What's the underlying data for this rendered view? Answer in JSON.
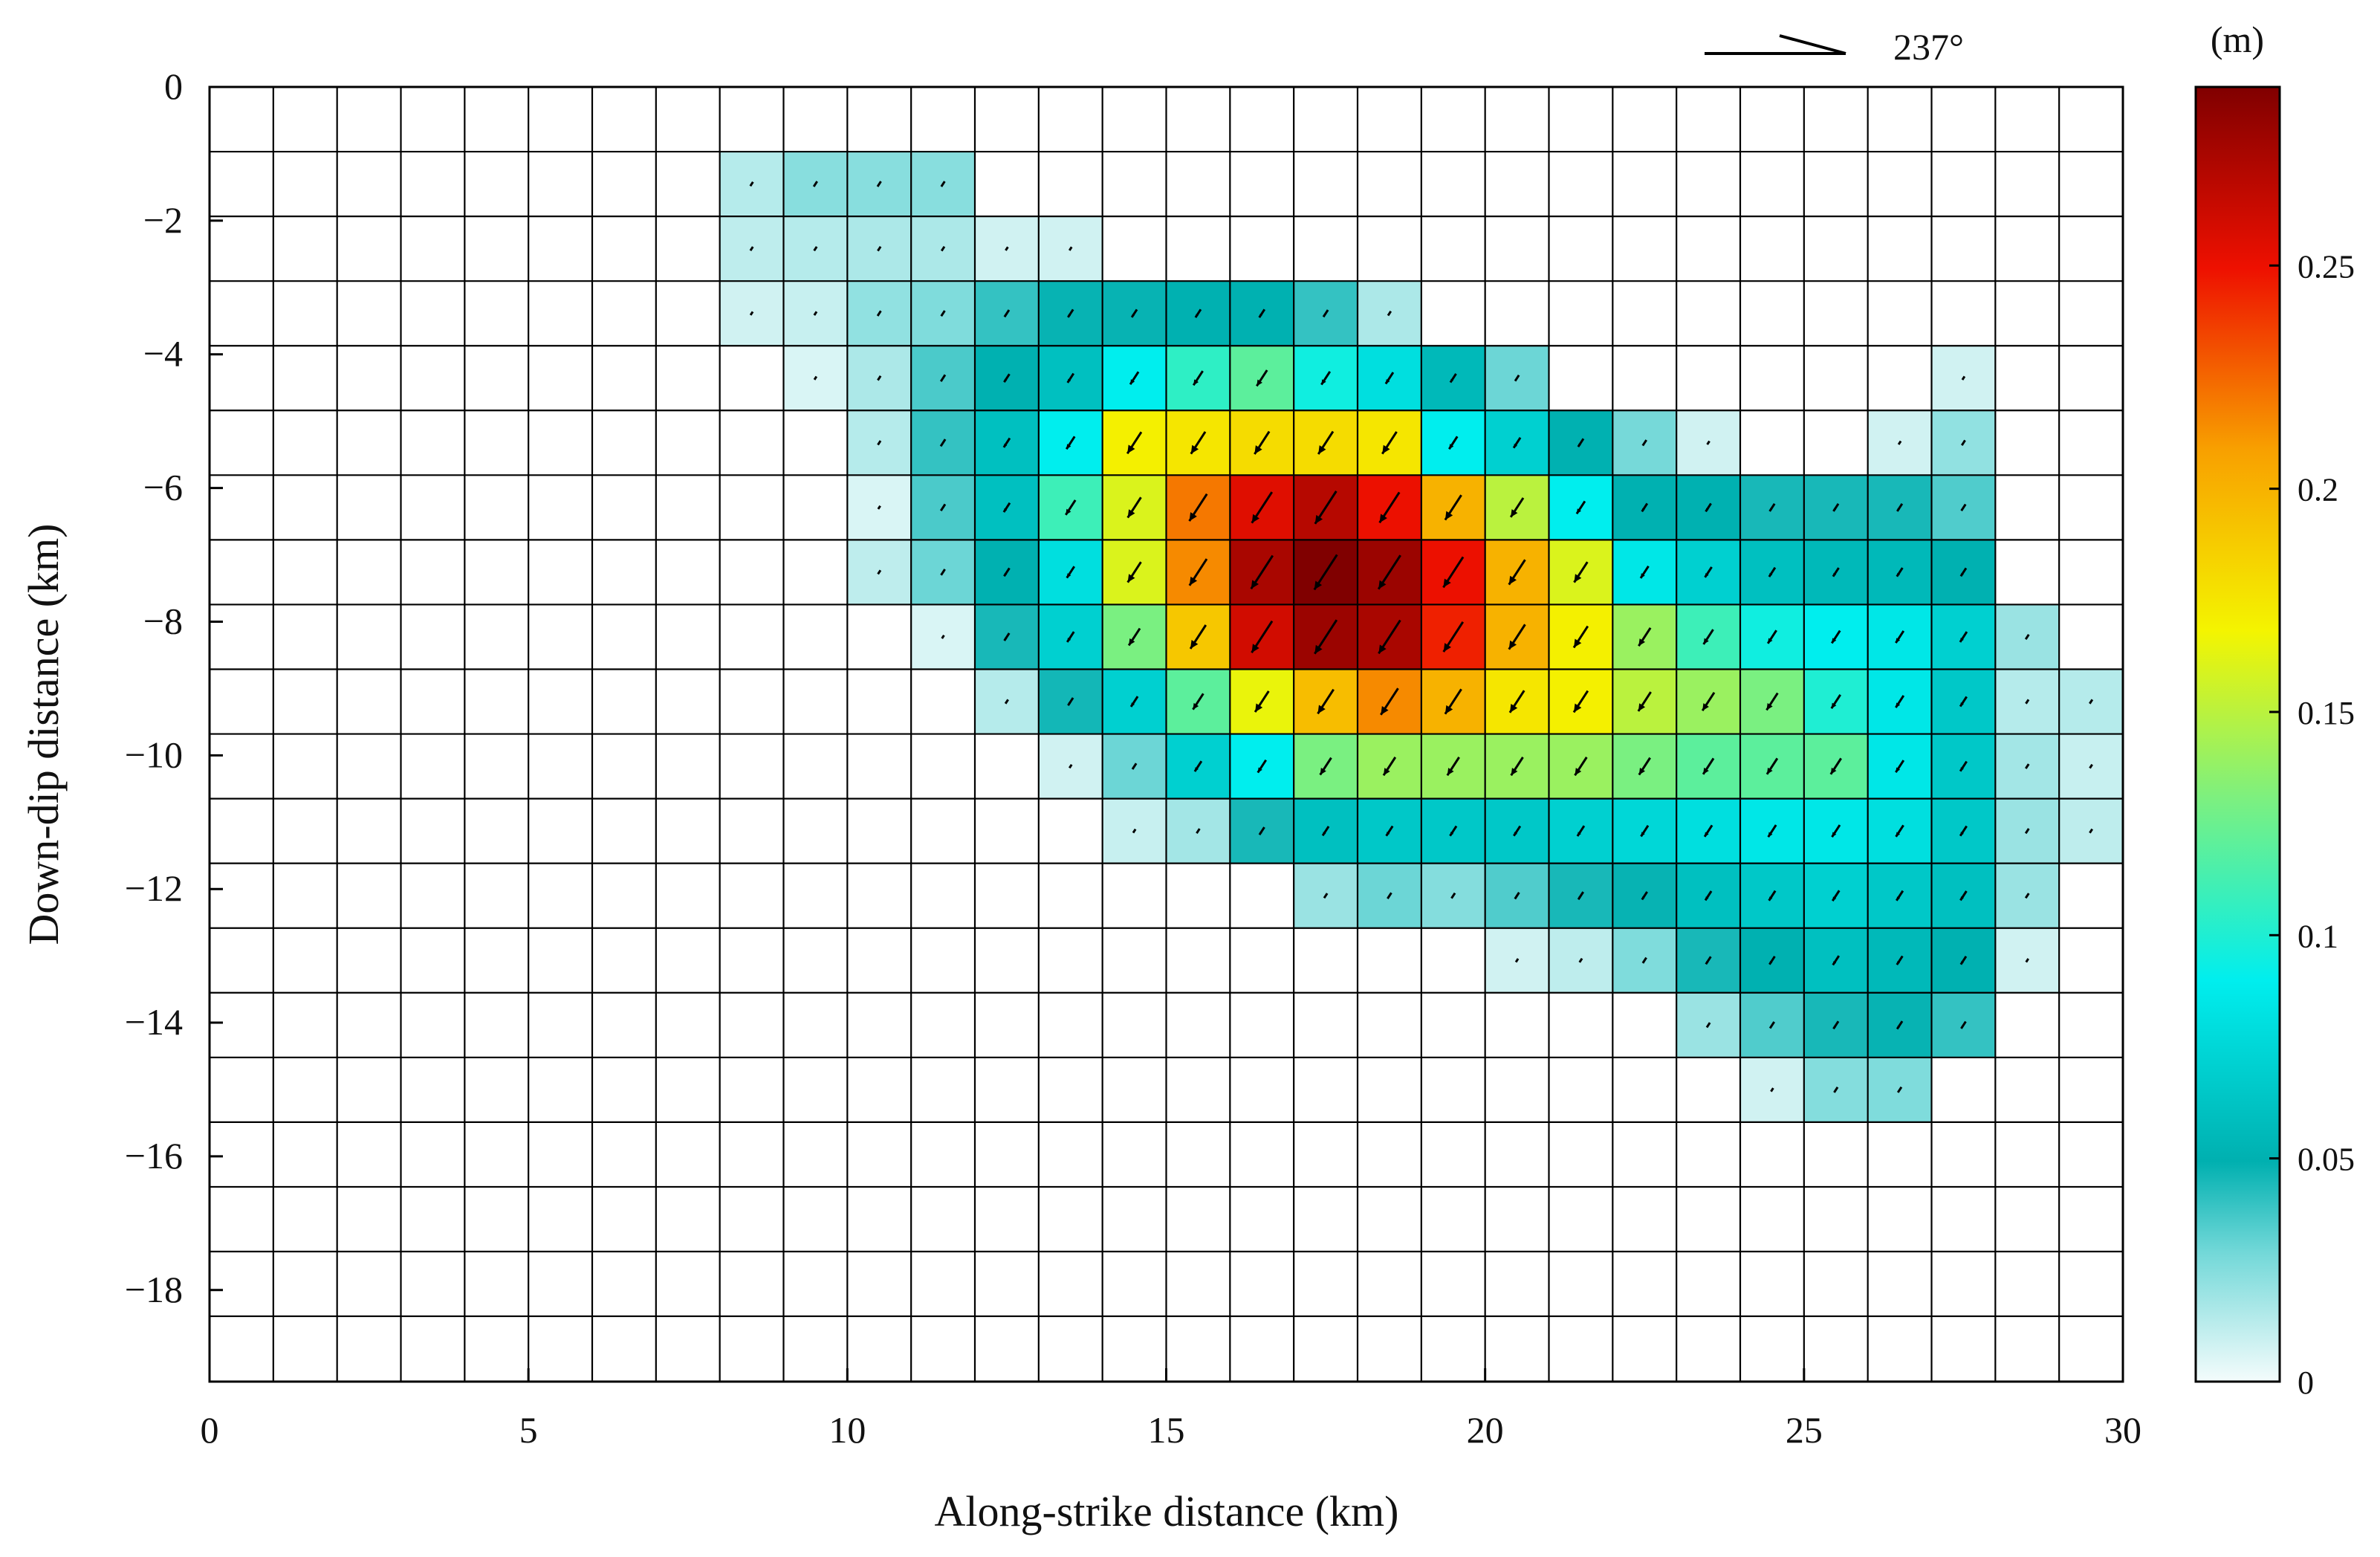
{
  "chart_data": {
    "type": "heatmap",
    "title": "",
    "xlabel": "Along-strike distance (km)",
    "ylabel": "Down-dip distance (km)",
    "xlim": [
      0,
      30
    ],
    "ylim": [
      -19.37,
      0
    ],
    "x_ticks": [
      0,
      5,
      10,
      15,
      20,
      25,
      30
    ],
    "y_ticks": [
      0,
      -2,
      -4,
      -6,
      -8,
      -10,
      -12,
      -14,
      -16,
      -18
    ],
    "grid": "1 km along-strike x 0.968 km down-dip patches; 30 columns x 20 rows",
    "cell_size_km": [
      1.0,
      0.968
    ],
    "colorbar": {
      "unit_label": "(m)",
      "range": [
        0,
        0.29
      ],
      "ticks": [
        0,
        0.05,
        0.1,
        0.15,
        0.2,
        0.25
      ],
      "tick_labels": [
        "0",
        "0.05",
        "0.1",
        "0.15",
        "0.2",
        "0.25"
      ],
      "colormap": "jet (white-to-cyan at low end)"
    },
    "rake_reference": {
      "label": "237°",
      "angle_deg": 237
    },
    "slip_rows": [
      [
        0,
        0,
        0,
        0,
        0,
        0,
        0,
        0,
        0,
        0,
        0,
        0,
        0,
        0,
        0,
        0,
        0,
        0,
        0,
        0,
        0,
        0,
        0,
        0,
        0,
        0,
        0,
        0,
        0,
        0
      ],
      [
        0,
        0,
        0,
        0,
        0,
        0,
        0,
        0,
        0.014,
        0.024,
        0.024,
        0.024,
        0,
        0,
        0,
        0,
        0,
        0,
        0,
        0,
        0,
        0,
        0,
        0,
        0,
        0,
        0,
        0,
        0,
        0
      ],
      [
        0,
        0,
        0,
        0,
        0,
        0,
        0,
        0,
        0.012,
        0.014,
        0.016,
        0.016,
        0.008,
        0.008,
        0,
        0,
        0,
        0,
        0,
        0,
        0,
        0,
        0,
        0,
        0,
        0,
        0,
        0,
        0,
        0
      ],
      [
        0,
        0,
        0,
        0,
        0,
        0,
        0,
        0,
        0.008,
        0.01,
        0.022,
        0.026,
        0.04,
        0.048,
        0.048,
        0.05,
        0.05,
        0.04,
        0.016,
        0,
        0,
        0,
        0,
        0,
        0,
        0,
        0,
        0,
        0,
        0
      ],
      [
        0,
        0,
        0,
        0,
        0,
        0,
        0,
        0,
        0,
        0.006,
        0.016,
        0.036,
        0.05,
        0.06,
        0.09,
        0.105,
        0.12,
        0.095,
        0.08,
        0.055,
        0.03,
        0,
        0,
        0,
        0,
        0,
        0,
        0.008,
        0,
        0
      ],
      [
        0,
        0,
        0,
        0,
        0,
        0,
        0,
        0,
        0,
        0,
        0.014,
        0.04,
        0.06,
        0.09,
        0.17,
        0.175,
        0.18,
        0.18,
        0.175,
        0.09,
        0.07,
        0.05,
        0.028,
        0.008,
        0,
        0,
        0.008,
        0.022,
        0,
        0
      ],
      [
        0,
        0,
        0,
        0,
        0,
        0,
        0,
        0,
        0,
        0,
        0.006,
        0.036,
        0.06,
        0.11,
        0.16,
        0.22,
        0.255,
        0.27,
        0.25,
        0.2,
        0.15,
        0.09,
        0.05,
        0.05,
        0.045,
        0.045,
        0.045,
        0.035,
        0,
        0
      ],
      [
        0,
        0,
        0,
        0,
        0,
        0,
        0,
        0,
        0,
        0,
        0.012,
        0.03,
        0.05,
        0.08,
        0.16,
        0.215,
        0.275,
        0.29,
        0.28,
        0.25,
        0.2,
        0.16,
        0.085,
        0.07,
        0.06,
        0.055,
        0.055,
        0.05,
        0,
        0
      ],
      [
        0,
        0,
        0,
        0,
        0,
        0,
        0,
        0,
        0,
        0,
        0,
        0.006,
        0.045,
        0.07,
        0.13,
        0.19,
        0.26,
        0.28,
        0.275,
        0.245,
        0.2,
        0.17,
        0.14,
        0.11,
        0.095,
        0.09,
        0.085,
        0.07,
        0.02,
        0
      ],
      [
        0,
        0,
        0,
        0,
        0,
        0,
        0,
        0,
        0,
        0,
        0,
        0,
        0.014,
        0.046,
        0.07,
        0.12,
        0.165,
        0.195,
        0.215,
        0.2,
        0.175,
        0.17,
        0.15,
        0.14,
        0.13,
        0.1,
        0.085,
        0.065,
        0.014,
        0.014
      ],
      [
        0,
        0,
        0,
        0,
        0,
        0,
        0,
        0,
        0,
        0,
        0,
        0,
        0,
        0.008,
        0.03,
        0.07,
        0.09,
        0.13,
        0.14,
        0.14,
        0.14,
        0.14,
        0.13,
        0.12,
        0.12,
        0.12,
        0.085,
        0.065,
        0.018,
        0.01
      ],
      [
        0,
        0,
        0,
        0,
        0,
        0,
        0,
        0,
        0,
        0,
        0,
        0,
        0,
        0,
        0.01,
        0.018,
        0.045,
        0.06,
        0.065,
        0.065,
        0.065,
        0.07,
        0.075,
        0.08,
        0.085,
        0.085,
        0.08,
        0.065,
        0.02,
        0.012
      ],
      [
        0,
        0,
        0,
        0,
        0,
        0,
        0,
        0,
        0,
        0,
        0,
        0,
        0,
        0,
        0,
        0,
        0,
        0.02,
        0.03,
        0.025,
        0.035,
        0.045,
        0.048,
        0.06,
        0.065,
        0.07,
        0.065,
        0.06,
        0.02,
        0
      ],
      [
        0,
        0,
        0,
        0,
        0,
        0,
        0,
        0,
        0,
        0,
        0,
        0,
        0,
        0,
        0,
        0,
        0,
        0,
        0,
        0,
        0.008,
        0.012,
        0.026,
        0.045,
        0.05,
        0.06,
        0.055,
        0.05,
        0.008,
        0
      ],
      [
        0,
        0,
        0,
        0,
        0,
        0,
        0,
        0,
        0,
        0,
        0,
        0,
        0,
        0,
        0,
        0,
        0,
        0,
        0,
        0,
        0,
        0,
        0,
        0.02,
        0.035,
        0.045,
        0.048,
        0.04,
        0,
        0
      ],
      [
        0,
        0,
        0,
        0,
        0,
        0,
        0,
        0,
        0,
        0,
        0,
        0,
        0,
        0,
        0,
        0,
        0,
        0,
        0,
        0,
        0,
        0,
        0,
        0,
        0.008,
        0.025,
        0.026,
        0,
        0,
        0
      ],
      [
        0,
        0,
        0,
        0,
        0,
        0,
        0,
        0,
        0,
        0,
        0,
        0,
        0,
        0,
        0,
        0,
        0,
        0,
        0,
        0,
        0,
        0,
        0,
        0,
        0,
        0,
        0,
        0,
        0,
        0
      ],
      [
        0,
        0,
        0,
        0,
        0,
        0,
        0,
        0,
        0,
        0,
        0,
        0,
        0,
        0,
        0,
        0,
        0,
        0,
        0,
        0,
        0,
        0,
        0,
        0,
        0,
        0,
        0,
        0,
        0,
        0
      ],
      [
        0,
        0,
        0,
        0,
        0,
        0,
        0,
        0,
        0,
        0,
        0,
        0,
        0,
        0,
        0,
        0,
        0,
        0,
        0,
        0,
        0,
        0,
        0,
        0,
        0,
        0,
        0,
        0,
        0,
        0
      ],
      [
        0,
        0,
        0,
        0,
        0,
        0,
        0,
        0,
        0,
        0,
        0,
        0,
        0,
        0,
        0,
        0,
        0,
        0,
        0,
        0,
        0,
        0,
        0,
        0,
        0,
        0,
        0,
        0,
        0,
        0
      ]
    ]
  }
}
